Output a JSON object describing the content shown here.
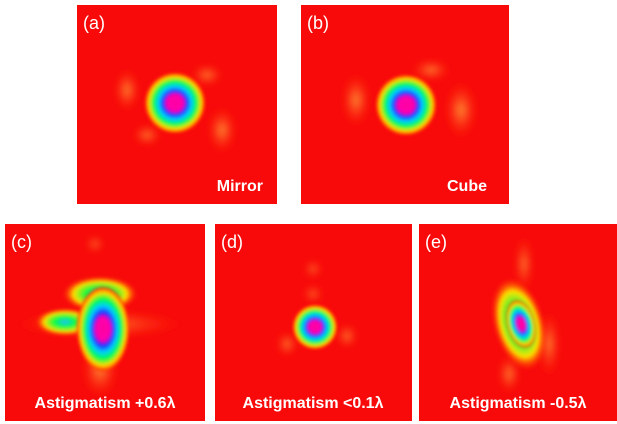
{
  "panels": [
    {
      "label": "(a)",
      "caption": "Mirror"
    },
    {
      "label": "(b)",
      "caption": "Cube"
    },
    {
      "label": "(c)",
      "caption": "Astigmatism +0.6λ"
    },
    {
      "label": "(d)",
      "caption": "Astigmatism <0.1λ"
    },
    {
      "label": "(e)",
      "caption": "Astigmatism -0.5λ"
    }
  ]
}
